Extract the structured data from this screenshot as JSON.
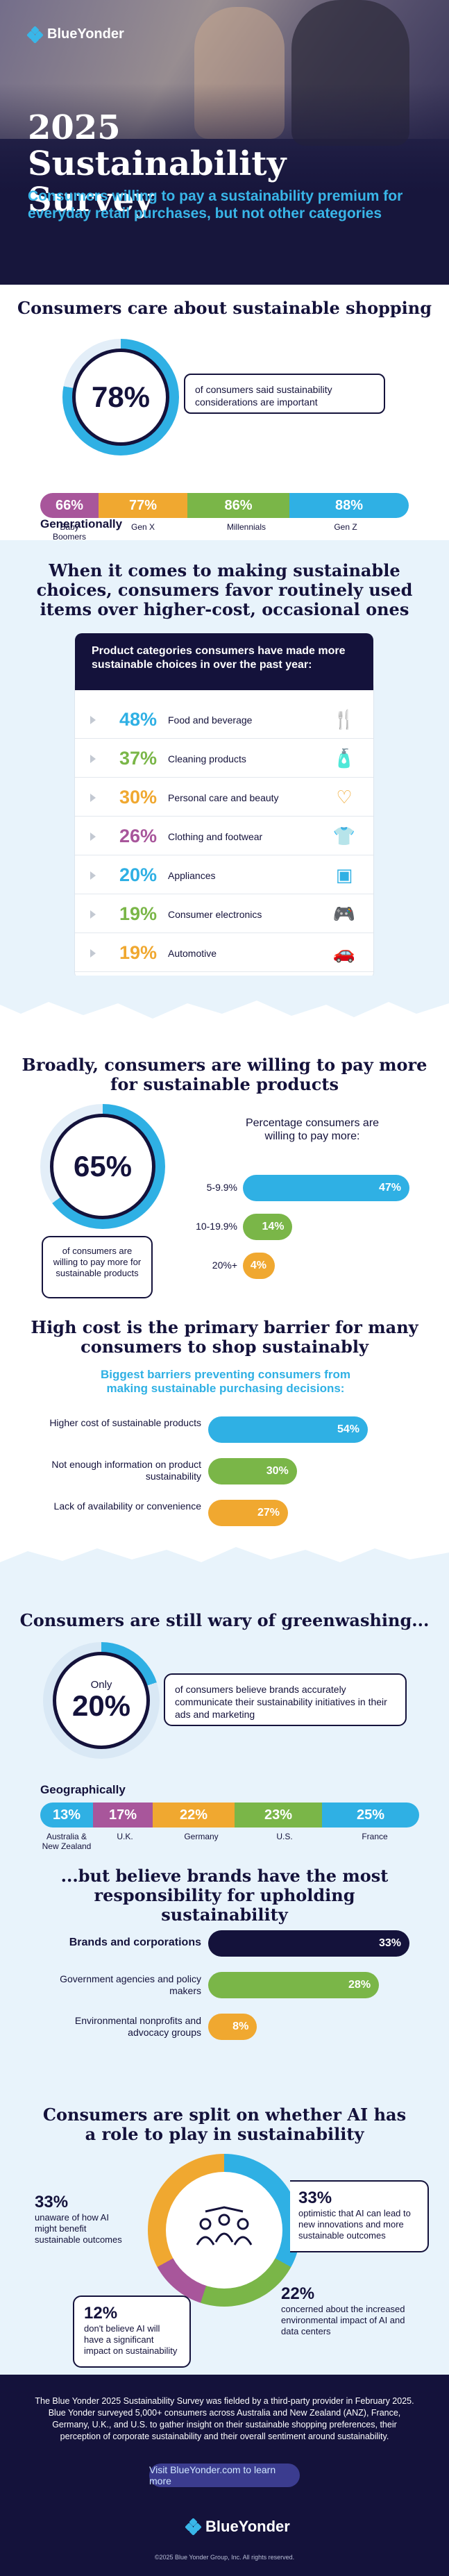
{
  "brand": {
    "name": "BlueYonder"
  },
  "hero": {
    "title_line1": "2025",
    "title_line2": "Sustainability Survey",
    "subtitle": "Consumers willing to pay a sustainability premium for everyday retail purchases, but not other categories"
  },
  "care": {
    "title": "Consumers care about sustainable shopping",
    "stat": "78%",
    "stat_value": 78,
    "callout": "of consumers said sustainability considerations are important",
    "generationally_label": "Generationally",
    "generations": [
      {
        "value": "66%",
        "label": "Baby Boomers",
        "color": "#a8569b"
      },
      {
        "value": "77%",
        "label": "Gen X",
        "color": "#f0a830"
      },
      {
        "value": "86%",
        "label": "Millennials",
        "color": "#7ab648"
      },
      {
        "value": "88%",
        "label": "Gen Z",
        "color": "#2fb0e4"
      }
    ]
  },
  "choices": {
    "title": "When it comes to making sustainable choices, consumers favor routinely used items over higher-cost, occasional ones",
    "card_header": "Product categories consumers have made more sustainable choices in over the past year:",
    "items": [
      {
        "pct": "48%",
        "name": "Food and beverage",
        "color": "#2fb0e4",
        "icon": "food-icon",
        "glyph": "🍴"
      },
      {
        "pct": "37%",
        "name": "Cleaning products",
        "color": "#7ab648",
        "icon": "cleaning-icon",
        "glyph": "🧴"
      },
      {
        "pct": "30%",
        "name": "Personal care and beauty",
        "color": "#f0a830",
        "icon": "heart-icon",
        "glyph": "♡"
      },
      {
        "pct": "26%",
        "name": "Clothing and footwear",
        "color": "#a8569b",
        "icon": "shirt-icon",
        "glyph": "👕"
      },
      {
        "pct": "20%",
        "name": "Appliances",
        "color": "#2fb0e4",
        "icon": "washer-icon",
        "glyph": "▣"
      },
      {
        "pct": "19%",
        "name": "Consumer electronics",
        "color": "#7ab648",
        "icon": "gamepad-icon",
        "glyph": "🎮"
      },
      {
        "pct": "19%",
        "name": "Automotive",
        "color": "#f0a830",
        "icon": "car-icon",
        "glyph": "🚗"
      }
    ]
  },
  "pay": {
    "title": "Broadly, consumers are willing to pay more for sustainable products",
    "stat": "65%",
    "stat_value": 65,
    "callout": "of consumers are willing to pay more for sustainable products",
    "chart_title": "Percentage consumers are willing to pay more:"
  },
  "barrier": {
    "title": "High cost is the primary barrier for many consumers to shop sustainably",
    "subtitle": "Biggest barriers preventing consumers from making sustainable purchasing decisions:"
  },
  "chart_data": [
    {
      "type": "bar",
      "orientation": "horizontal",
      "title": "Percentage consumers are willing to pay more:",
      "categories": [
        "5-9.9%",
        "10-19.9%",
        "20%+"
      ],
      "values": [
        47,
        14,
        4
      ],
      "labels": [
        "47%",
        "14%",
        "4%"
      ],
      "colors": [
        "#2fb0e4",
        "#7ab648",
        "#f0a830"
      ],
      "xlim": [
        0,
        47
      ]
    },
    {
      "type": "bar",
      "orientation": "horizontal",
      "title": "Biggest barriers preventing consumers from making sustainable purchasing decisions:",
      "categories": [
        "Higher cost of sustainable products",
        "Not enough information on product sustainability",
        "Lack of availability or convenience"
      ],
      "values": [
        54,
        30,
        27
      ],
      "labels": [
        "54%",
        "30%",
        "27%"
      ],
      "colors": [
        "#2fb0e4",
        "#7ab648",
        "#f0a830"
      ],
      "xlim": [
        0,
        54
      ]
    },
    {
      "type": "bar",
      "orientation": "horizontal",
      "title": "...but believe brands have the most responsibility for upholding sustainability",
      "categories": [
        "Brands and corporations",
        "Government agencies and policy makers",
        "Environmental nonprofits and advocacy groups"
      ],
      "values": [
        33,
        28,
        8
      ],
      "labels": [
        "33%",
        "28%",
        "8%"
      ],
      "colors": [
        "#14123b",
        "#7ab648",
        "#f0a830"
      ],
      "xlim": [
        0,
        33
      ]
    }
  ],
  "greenwash": {
    "title": "Consumers are still wary of greenwashing...",
    "stat_prefix": "Only",
    "stat": "20%",
    "stat_value": 20,
    "callout": "of consumers believe brands accurately communicate their sustainability initiatives in their ads and marketing",
    "geo_label": "Geographically",
    "regions": [
      {
        "value": "13%",
        "label": "Australia & New Zealand",
        "color": "#2fb0e4"
      },
      {
        "value": "17%",
        "label": "U.K.",
        "color": "#a8569b"
      },
      {
        "value": "22%",
        "label": "Germany",
        "color": "#f0a830"
      },
      {
        "value": "23%",
        "label": "U.S.",
        "color": "#7ab648"
      },
      {
        "value": "25%",
        "label": "France",
        "color": "#2fb0e4"
      }
    ]
  },
  "responsibility": {
    "title": "...but believe brands have the most responsibility for upholding sustainability"
  },
  "ai": {
    "title": "Consumers are split on whether AI has a role to play in sustainability",
    "items": [
      {
        "pct": "33%",
        "text": "unaware of how AI might benefit sustainable outcomes"
      },
      {
        "pct": "33%",
        "text": "optimistic that AI can lead to new innovations and more sustainable outcomes"
      },
      {
        "pct": "12%",
        "text": "don't believe AI will have a significant impact on sustainability"
      },
      {
        "pct": "22%",
        "text": "concerned about the increased environmental impact of AI and data centers"
      }
    ]
  },
  "footer": {
    "description": "The Blue Yonder 2025 Sustainability Survey was fielded by a third-party provider in February 2025. Blue Yonder surveyed 5,000+ consumers across Australia and New Zealand (ANZ), France, Germany, U.K., and U.S. to gather insight on their sustainable shopping preferences, their perception of corporate sustainability and their overall sentiment around sustainability.",
    "cta": "Visit BlueYonder.com to learn more",
    "copyright": "©2025 Blue Yonder Group, Inc. All rights reserved."
  }
}
